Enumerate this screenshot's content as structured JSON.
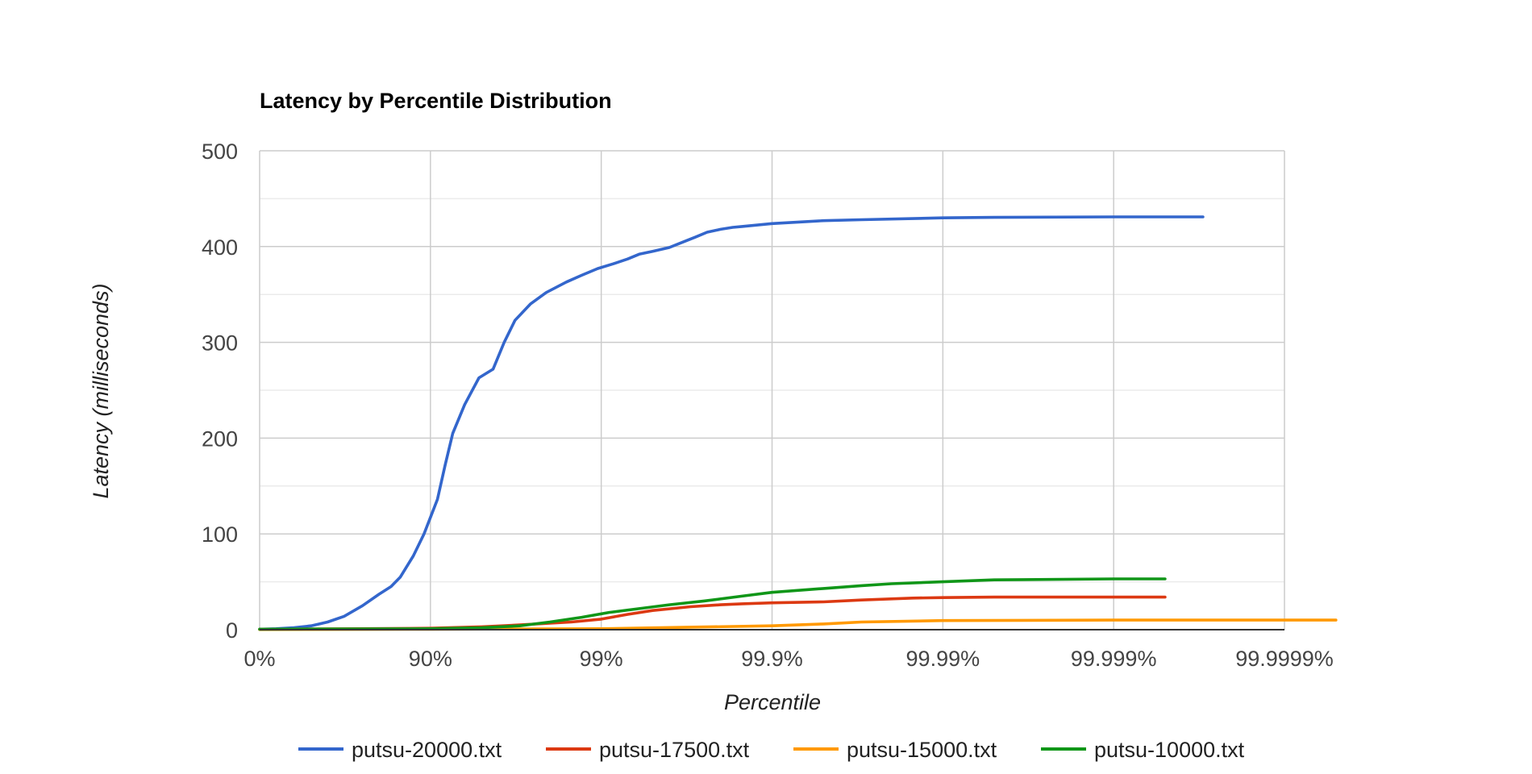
{
  "chart_data": {
    "type": "line",
    "title": "Latency by Percentile Distribution",
    "xlabel": "Percentile",
    "ylabel": "Latency (milliseconds)",
    "x_scale": "percentile-log",
    "x_ticks": [
      "0%",
      "90%",
      "99%",
      "99.9%",
      "99.99%",
      "99.999%",
      "99.9999%"
    ],
    "y_ticks": [
      "0",
      "100",
      "200",
      "300",
      "400",
      "500"
    ],
    "ylim": [
      0,
      500
    ],
    "grid": true,
    "legend_position": "bottom",
    "series": [
      {
        "name": "putsu-20000.txt",
        "color": "#3366cc",
        "points": [
          [
            "0%",
            0.5
          ],
          [
            "20%",
            1
          ],
          [
            "37%",
            2
          ],
          [
            "50%",
            4
          ],
          [
            "60%",
            8
          ],
          [
            "68%",
            14
          ],
          [
            "75%",
            25
          ],
          [
            "80%",
            37
          ],
          [
            "83%",
            45
          ],
          [
            "85%",
            55
          ],
          [
            "87.4%",
            77
          ],
          [
            "89.1%",
            100
          ],
          [
            "90.9%",
            136
          ],
          [
            "91.8%",
            172
          ],
          [
            "92.6%",
            205
          ],
          [
            "93.7%",
            235
          ],
          [
            "94.8%",
            263
          ],
          [
            "95.7%",
            272
          ],
          [
            "96.3%",
            300
          ],
          [
            "96.8%",
            323
          ],
          [
            "97.4%",
            340
          ],
          [
            "97.9%",
            352
          ],
          [
            "98.4%",
            363
          ],
          [
            "98.7%",
            370
          ],
          [
            "98.95%",
            377
          ],
          [
            "99.15%",
            382
          ],
          [
            "99.3%",
            387
          ],
          [
            "99.4%",
            392
          ],
          [
            "99.5%",
            395
          ],
          [
            "99.6%",
            399
          ],
          [
            "99.67%",
            405
          ],
          [
            "99.72%",
            410
          ],
          [
            "99.76%",
            415
          ],
          [
            "99.8%",
            418
          ],
          [
            "99.83%",
            420
          ],
          [
            "99.85%",
            421
          ],
          [
            "99.9%",
            424
          ],
          [
            "99.95%",
            427
          ],
          [
            "99.97%",
            428
          ],
          [
            "99.99%",
            430
          ],
          [
            "99.995%",
            430.5
          ],
          [
            "99.999%",
            431
          ],
          [
            "99.9997%",
            431
          ]
        ]
      },
      {
        "name": "putsu-17500.txt",
        "color": "#dc3912",
        "points": [
          [
            "0%",
            0.3
          ],
          [
            "90%",
            1.5
          ],
          [
            "95%",
            3
          ],
          [
            "97%",
            5
          ],
          [
            "98.5%",
            8
          ],
          [
            "99%",
            11
          ],
          [
            "99.3%",
            16
          ],
          [
            "99.5%",
            20
          ],
          [
            "99.7%",
            24
          ],
          [
            "99.8%",
            26
          ],
          [
            "99.85%",
            27
          ],
          [
            "99.9%",
            28
          ],
          [
            "99.95%",
            29
          ],
          [
            "99.97%",
            31
          ],
          [
            "99.985%",
            33
          ],
          [
            "99.99%",
            33.5
          ],
          [
            "99.995%",
            34
          ],
          [
            "99.999%",
            34
          ],
          [
            "99.9995%",
            34
          ]
        ]
      },
      {
        "name": "putsu-15000.txt",
        "color": "#ff9900",
        "points": [
          [
            "0%",
            0.2
          ],
          [
            "90%",
            0.5
          ],
          [
            "99%",
            1
          ],
          [
            "99.9%",
            4
          ],
          [
            "99.95%",
            6
          ],
          [
            "99.97%",
            8
          ],
          [
            "99.99%",
            9.5
          ],
          [
            "99.999%",
            10
          ],
          [
            "99.9999%",
            10
          ],
          [
            "99.99995%",
            10
          ]
        ]
      },
      {
        "name": "putsu-10000.txt",
        "color": "#109618",
        "points": [
          [
            "0%",
            0.5
          ],
          [
            "90%",
            1
          ],
          [
            "95%",
            2
          ],
          [
            "97%",
            4
          ],
          [
            "98%",
            8
          ],
          [
            "98.7%",
            13
          ],
          [
            "99.1%",
            18
          ],
          [
            "99.4%",
            22
          ],
          [
            "99.6%",
            26
          ],
          [
            "99.75%",
            30
          ],
          [
            "99.85%",
            35
          ],
          [
            "99.9%",
            39
          ],
          [
            "99.95%",
            43
          ],
          [
            "99.97%",
            46
          ],
          [
            "99.98%",
            48
          ],
          [
            "99.99%",
            50
          ],
          [
            "99.995%",
            52
          ],
          [
            "99.999%",
            53
          ],
          [
            "99.9995%",
            53
          ]
        ]
      }
    ]
  }
}
